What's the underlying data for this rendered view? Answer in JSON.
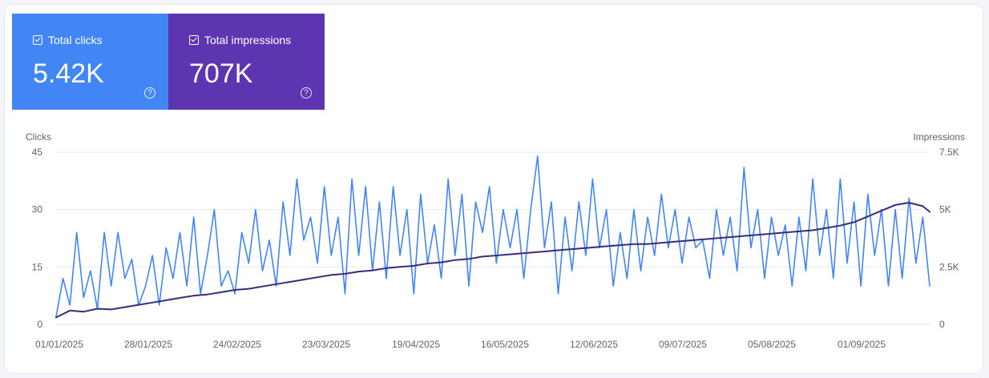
{
  "tiles": {
    "clicks": {
      "label": "Total clicks",
      "value": "5.42K",
      "color": "#4285f4"
    },
    "impressions": {
      "label": "Total impressions",
      "value": "707K",
      "color": "#5e35b1"
    }
  },
  "chart_data": {
    "type": "line",
    "x_start": "01/01/2025",
    "x_end": "16/09/2025",
    "x_ticks": [
      "01/01/2025",
      "28/01/2025",
      "24/02/2025",
      "23/03/2025",
      "19/04/2025",
      "16/05/2025",
      "12/06/2025",
      "09/07/2025",
      "05/08/2025",
      "01/09/2025"
    ],
    "left_axis": {
      "label": "Clicks",
      "ticks": [
        0,
        15,
        30,
        45
      ],
      "tick_labels": [
        "0",
        "15",
        "30",
        "45"
      ],
      "range": [
        0,
        45
      ]
    },
    "right_axis": {
      "label": "Impressions",
      "ticks": [
        0,
        2500,
        5000,
        7500
      ],
      "tick_labels": [
        "0",
        "2.5K",
        "5K",
        "7.5K"
      ],
      "range": [
        0,
        7500
      ]
    },
    "grid": true,
    "series": [
      {
        "name": "Clicks",
        "axis": "left",
        "color": "#4285f4",
        "points": [
          [
            0,
            2
          ],
          [
            3,
            12
          ],
          [
            6,
            5
          ],
          [
            9,
            24
          ],
          [
            12,
            7
          ],
          [
            15,
            14
          ],
          [
            18,
            4
          ],
          [
            21,
            24
          ],
          [
            24,
            10
          ],
          [
            27,
            24
          ],
          [
            30,
            12
          ],
          [
            33,
            17
          ],
          [
            36,
            5
          ],
          [
            39,
            10
          ],
          [
            42,
            18
          ],
          [
            45,
            5
          ],
          [
            48,
            20
          ],
          [
            51,
            12
          ],
          [
            54,
            24
          ],
          [
            57,
            10
          ],
          [
            60,
            28
          ],
          [
            63,
            8
          ],
          [
            66,
            18
          ],
          [
            69,
            30
          ],
          [
            72,
            10
          ],
          [
            75,
            14
          ],
          [
            78,
            8
          ],
          [
            81,
            24
          ],
          [
            84,
            16
          ],
          [
            87,
            30
          ],
          [
            90,
            14
          ],
          [
            93,
            22
          ],
          [
            96,
            10
          ],
          [
            99,
            32
          ],
          [
            102,
            18
          ],
          [
            105,
            38
          ],
          [
            108,
            22
          ],
          [
            111,
            28
          ],
          [
            114,
            16
          ],
          [
            117,
            36
          ],
          [
            120,
            18
          ],
          [
            123,
            28
          ],
          [
            126,
            8
          ],
          [
            129,
            38
          ],
          [
            132,
            18
          ],
          [
            135,
            36
          ],
          [
            138,
            14
          ],
          [
            141,
            32
          ],
          [
            144,
            12
          ],
          [
            147,
            36
          ],
          [
            150,
            18
          ],
          [
            153,
            30
          ],
          [
            156,
            8
          ],
          [
            159,
            34
          ],
          [
            162,
            16
          ],
          [
            165,
            26
          ],
          [
            168,
            12
          ],
          [
            171,
            38
          ],
          [
            174,
            18
          ],
          [
            177,
            34
          ],
          [
            180,
            10
          ],
          [
            183,
            32
          ],
          [
            186,
            24
          ],
          [
            189,
            36
          ],
          [
            192,
            16
          ],
          [
            195,
            30
          ],
          [
            198,
            20
          ],
          [
            201,
            30
          ],
          [
            204,
            12
          ],
          [
            207,
            30
          ],
          [
            210,
            44
          ],
          [
            213,
            20
          ],
          [
            216,
            32
          ],
          [
            219,
            8
          ],
          [
            222,
            28
          ],
          [
            225,
            14
          ],
          [
            228,
            32
          ],
          [
            231,
            18
          ],
          [
            234,
            38
          ],
          [
            237,
            20
          ],
          [
            240,
            30
          ],
          [
            243,
            10
          ],
          [
            246,
            24
          ],
          [
            249,
            12
          ],
          [
            252,
            30
          ],
          [
            255,
            14
          ],
          [
            258,
            28
          ],
          [
            261,
            18
          ],
          [
            264,
            34
          ],
          [
            267,
            20
          ],
          [
            270,
            30
          ],
          [
            273,
            16
          ],
          [
            276,
            28
          ],
          [
            279,
            20
          ],
          [
            282,
            22
          ],
          [
            285,
            12
          ],
          [
            288,
            30
          ],
          [
            291,
            18
          ],
          [
            294,
            28
          ],
          [
            297,
            14
          ],
          [
            300,
            41
          ],
          [
            303,
            20
          ],
          [
            306,
            30
          ],
          [
            309,
            12
          ],
          [
            312,
            28
          ],
          [
            315,
            18
          ],
          [
            318,
            26
          ],
          [
            321,
            10
          ],
          [
            324,
            28
          ],
          [
            327,
            14
          ],
          [
            330,
            38
          ],
          [
            333,
            18
          ],
          [
            336,
            30
          ],
          [
            339,
            12
          ],
          [
            342,
            38
          ],
          [
            345,
            16
          ],
          [
            348,
            32
          ],
          [
            351,
            10
          ],
          [
            354,
            34
          ],
          [
            357,
            18
          ],
          [
            360,
            30
          ],
          [
            363,
            10
          ],
          [
            366,
            30
          ],
          [
            369,
            12
          ],
          [
            372,
            33
          ],
          [
            375,
            16
          ],
          [
            378,
            28
          ],
          [
            381,
            10
          ]
        ]
      },
      {
        "name": "Impressions",
        "axis": "right",
        "color": "#3c2a7a",
        "points": [
          [
            0,
            300
          ],
          [
            6,
            600
          ],
          [
            12,
            550
          ],
          [
            18,
            680
          ],
          [
            24,
            650
          ],
          [
            30,
            750
          ],
          [
            36,
            850
          ],
          [
            42,
            950
          ],
          [
            48,
            1050
          ],
          [
            54,
            1150
          ],
          [
            60,
            1250
          ],
          [
            66,
            1300
          ],
          [
            72,
            1400
          ],
          [
            78,
            1500
          ],
          [
            84,
            1550
          ],
          [
            90,
            1650
          ],
          [
            96,
            1750
          ],
          [
            102,
            1850
          ],
          [
            108,
            1950
          ],
          [
            114,
            2050
          ],
          [
            120,
            2150
          ],
          [
            126,
            2200
          ],
          [
            132,
            2300
          ],
          [
            138,
            2350
          ],
          [
            144,
            2450
          ],
          [
            150,
            2500
          ],
          [
            156,
            2550
          ],
          [
            162,
            2650
          ],
          [
            168,
            2700
          ],
          [
            174,
            2800
          ],
          [
            180,
            2850
          ],
          [
            186,
            2950
          ],
          [
            192,
            3000
          ],
          [
            198,
            3050
          ],
          [
            204,
            3100
          ],
          [
            210,
            3150
          ],
          [
            216,
            3200
          ],
          [
            222,
            3250
          ],
          [
            228,
            3300
          ],
          [
            234,
            3350
          ],
          [
            240,
            3400
          ],
          [
            246,
            3450
          ],
          [
            252,
            3500
          ],
          [
            258,
            3500
          ],
          [
            264,
            3550
          ],
          [
            270,
            3600
          ],
          [
            276,
            3650
          ],
          [
            282,
            3700
          ],
          [
            288,
            3750
          ],
          [
            294,
            3800
          ],
          [
            300,
            3850
          ],
          [
            306,
            3900
          ],
          [
            312,
            3950
          ],
          [
            318,
            4000
          ],
          [
            324,
            4050
          ],
          [
            330,
            4100
          ],
          [
            336,
            4200
          ],
          [
            342,
            4300
          ],
          [
            348,
            4450
          ],
          [
            354,
            4700
          ],
          [
            360,
            4950
          ],
          [
            366,
            5200
          ],
          [
            372,
            5300
          ],
          [
            378,
            5150
          ],
          [
            381,
            4900
          ]
        ]
      }
    ]
  }
}
